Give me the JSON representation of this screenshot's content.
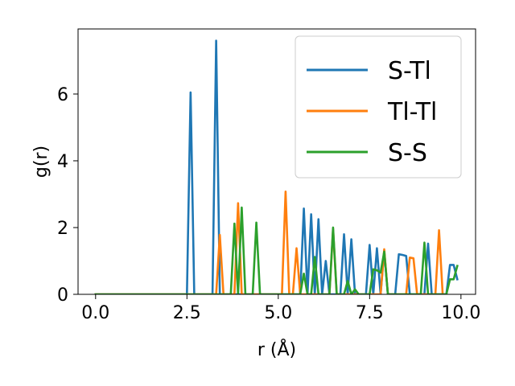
{
  "chart_data": {
    "type": "line",
    "title": "",
    "xlabel": "r (Å)",
    "ylabel": "g(r)",
    "xlim": [
      -0.48,
      10.4
    ],
    "ylim": [
      0,
      7.95
    ],
    "xticks": [
      0.0,
      2.5,
      5.0,
      7.5,
      10.0
    ],
    "xtick_labels": [
      "0.0",
      "2.5",
      "5.0",
      "7.5",
      "10.0"
    ],
    "yticks": [
      0,
      2,
      4,
      6
    ],
    "ytick_labels": [
      "0",
      "2",
      "4",
      "6"
    ],
    "grid": false,
    "legend_position": "top-right",
    "series": [
      {
        "name": "S-Tl",
        "color": "#1f77b4",
        "x": [
          0.0,
          2.5,
          2.6,
          2.7,
          3.2,
          3.3,
          3.4,
          5.6,
          5.7,
          5.8,
          5.9,
          6.0,
          6.1,
          6.2,
          6.3,
          6.4,
          6.7,
          6.8,
          6.9,
          7.0,
          7.1,
          7.2,
          7.4,
          7.5,
          7.6,
          7.7,
          7.8,
          7.9,
          8.0,
          8.1,
          8.2,
          8.3,
          8.4,
          8.5,
          8.6,
          8.7,
          8.8,
          8.9,
          9.0,
          9.1,
          9.2,
          9.5,
          9.6,
          9.7,
          9.8,
          9.9
        ],
        "y": [
          0.0,
          0.0,
          6.05,
          0.0,
          0.0,
          7.6,
          0.0,
          0.0,
          2.57,
          0.0,
          2.4,
          0.0,
          2.25,
          0.0,
          1.0,
          0.0,
          0.0,
          1.8,
          0.0,
          1.65,
          0.0,
          0.0,
          0.0,
          1.48,
          0.0,
          1.38,
          0.0,
          1.3,
          0.0,
          0.0,
          0.0,
          1.2,
          1.18,
          1.15,
          0.0,
          0.0,
          0.0,
          0.0,
          0.0,
          1.52,
          0.0,
          0.0,
          0.0,
          0.88,
          0.88,
          0.45
        ]
      },
      {
        "name": "Tl-Tl",
        "color": "#ff7f0e",
        "x": [
          0.0,
          3.3,
          3.4,
          3.5,
          3.8,
          3.9,
          4.0,
          5.1,
          5.2,
          5.3,
          5.4,
          5.5,
          5.6,
          6.4,
          6.5,
          6.6,
          7.8,
          7.9,
          8.0,
          8.5,
          8.6,
          8.7,
          8.8,
          9.3,
          9.4,
          9.5
        ],
        "y": [
          0.0,
          0.0,
          1.78,
          0.0,
          0.0,
          2.73,
          0.0,
          0.0,
          3.08,
          0.0,
          0.0,
          1.38,
          0.0,
          0.0,
          1.95,
          0.0,
          0.0,
          1.35,
          0.0,
          0.0,
          1.1,
          1.08,
          0.0,
          0.0,
          1.92,
          0.0
        ]
      },
      {
        "name": "S-S",
        "color": "#2ca02c",
        "x": [
          0.0,
          3.7,
          3.8,
          3.9,
          4.0,
          4.1,
          4.3,
          4.4,
          4.5,
          5.5,
          5.6,
          5.7,
          5.8,
          5.9,
          6.0,
          6.1,
          6.2,
          6.4,
          6.5,
          6.6,
          6.8,
          6.9,
          7.0,
          7.1,
          7.2,
          7.5,
          7.6,
          7.7,
          7.8,
          7.9,
          8.0,
          8.1,
          8.8,
          8.9,
          9.0,
          9.1,
          9.6,
          9.7,
          9.8,
          9.9
        ],
        "y": [
          0.0,
          0.0,
          2.12,
          0.0,
          2.6,
          0.0,
          0.0,
          2.15,
          0.0,
          0.0,
          0.0,
          0.62,
          0.0,
          0.0,
          1.12,
          0.0,
          0.0,
          0.0,
          2.0,
          0.0,
          0.0,
          0.4,
          0.0,
          0.15,
          0.0,
          0.0,
          0.75,
          0.72,
          0.65,
          1.28,
          0.0,
          0.0,
          0.0,
          0.0,
          1.55,
          0.0,
          0.0,
          0.45,
          0.45,
          0.85
        ]
      }
    ]
  }
}
